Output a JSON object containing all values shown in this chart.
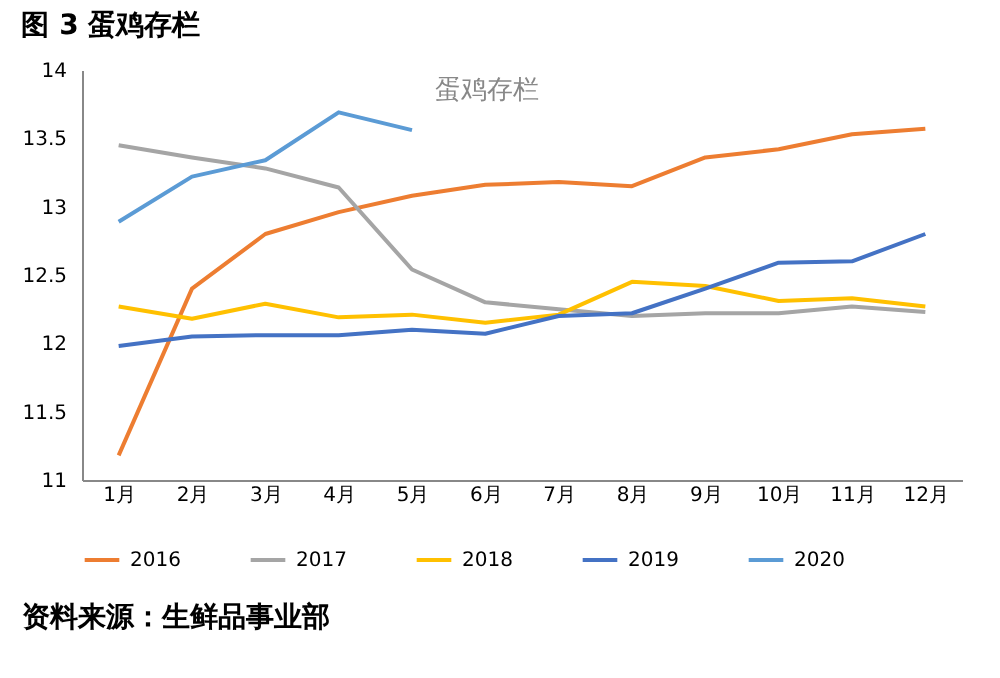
{
  "chart_data": {
    "type": "line",
    "title": "图 3 蛋鸡存栏",
    "subtitle": "蛋鸡存栏",
    "categories": [
      "1月",
      "2月",
      "3月",
      "4月",
      "5月",
      "6月",
      "7月",
      "8月",
      "9月",
      "10月",
      "11月",
      "12月"
    ],
    "series": [
      {
        "name": "2016",
        "color": "#ed7d31",
        "values": [
          11.18,
          12.4,
          12.8,
          12.96,
          13.08,
          13.16,
          13.18,
          13.15,
          13.36,
          13.42,
          13.53,
          13.57
        ]
      },
      {
        "name": "2017",
        "color": "#a5a5a5",
        "values": [
          13.45,
          13.36,
          13.28,
          13.14,
          12.54,
          12.3,
          12.25,
          12.2,
          12.22,
          12.22,
          12.27,
          12.23
        ]
      },
      {
        "name": "2018",
        "color": "#ffc000",
        "values": [
          12.27,
          12.18,
          12.29,
          12.19,
          12.21,
          12.15,
          12.21,
          12.45,
          12.42,
          12.31,
          12.33,
          12.27
        ]
      },
      {
        "name": "2019",
        "color": "#4472c4",
        "values": [
          11.98,
          12.05,
          12.06,
          12.06,
          12.1,
          12.07,
          12.2,
          12.22,
          12.4,
          12.59,
          12.6,
          12.8
        ]
      },
      {
        "name": "2020",
        "color": "#5b9bd5",
        "values": [
          12.89,
          13.22,
          13.34,
          13.69,
          13.56,
          null,
          null,
          null,
          null,
          null,
          null,
          null
        ]
      }
    ],
    "ylim": [
      11,
      14
    ],
    "yticks": [
      11,
      11.5,
      12,
      12.5,
      13,
      13.5,
      14
    ],
    "grid": false,
    "legend": "bottom",
    "marker": "none",
    "line_style": "solid",
    "annotations": [
      "资料来源：生鲜品事业部"
    ]
  }
}
